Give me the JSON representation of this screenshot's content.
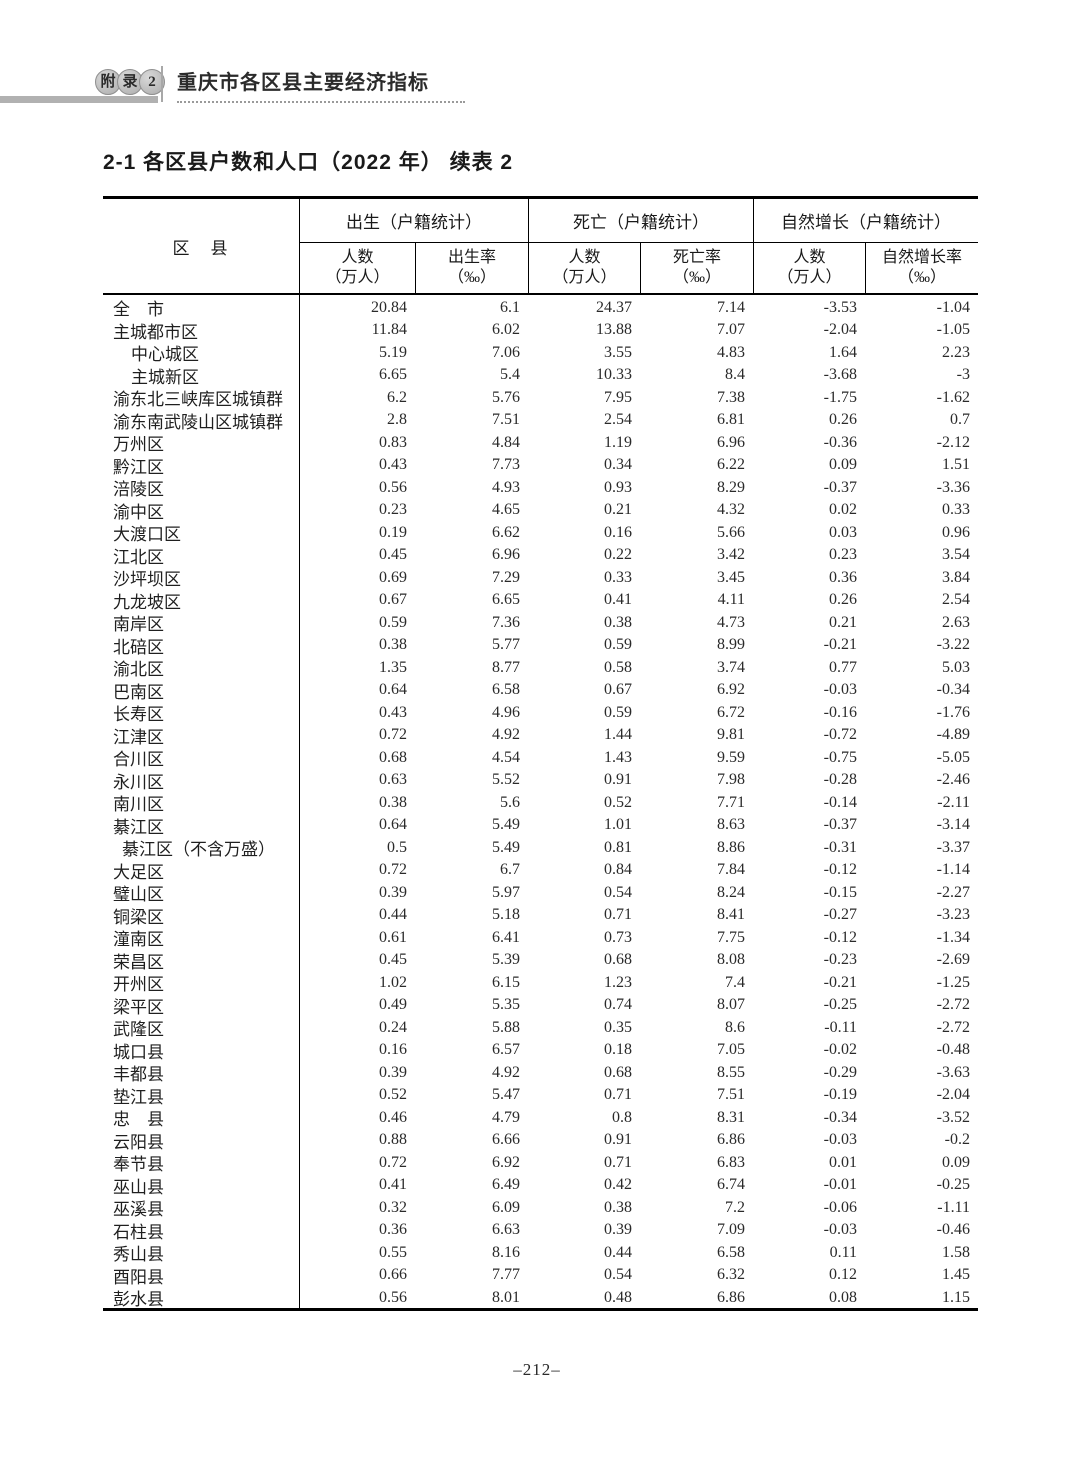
{
  "page_header": {
    "badge_chars": [
      "附",
      "录",
      "2"
    ],
    "doc_title": "重庆市各区县主要经济指标"
  },
  "table_title": "2-1  各区县户数和人口（2022 年） 续表 2",
  "colors": {
    "accent_bar": "#b1b1b1",
    "badge_fill": "#b9b9b9",
    "table_border": "#000000"
  },
  "table": {
    "corner_header": "区　县",
    "groups": [
      {
        "label": "出生（户籍统计）"
      },
      {
        "label": "死亡（户籍统计）"
      },
      {
        "label": "自然增长（户籍统计）"
      }
    ],
    "sub_headers": [
      {
        "line1": "人数",
        "line2": "（万人）"
      },
      {
        "line1": "出生率",
        "line2": "（‰）"
      },
      {
        "line1": "人数",
        "line2": "（万人）"
      },
      {
        "line1": "死亡率",
        "line2": "（‰）"
      },
      {
        "line1": "人数",
        "line2": "（万人）"
      },
      {
        "line1": "自然增长率",
        "line2": "（‰）"
      }
    ],
    "rows": [
      {
        "name": "全　市",
        "indent": 0,
        "values": [
          "20.84",
          "6.1",
          "24.37",
          "7.14",
          "-3.53",
          "-1.04"
        ]
      },
      {
        "name": "主城都市区",
        "indent": 0,
        "values": [
          "11.84",
          "6.02",
          "13.88",
          "7.07",
          "-2.04",
          "-1.05"
        ]
      },
      {
        "name": "中心城区",
        "indent": 18,
        "values": [
          "5.19",
          "7.06",
          "3.55",
          "4.83",
          "1.64",
          "2.23"
        ]
      },
      {
        "name": "主城新区",
        "indent": 18,
        "values": [
          "6.65",
          "5.4",
          "10.33",
          "8.4",
          "-3.68",
          "-3"
        ]
      },
      {
        "name": "渝东北三峡库区城镇群",
        "indent": 0,
        "values": [
          "6.2",
          "5.76",
          "7.95",
          "7.38",
          "-1.75",
          "-1.62"
        ]
      },
      {
        "name": "渝东南武陵山区城镇群",
        "indent": 0,
        "values": [
          "2.8",
          "7.51",
          "2.54",
          "6.81",
          "0.26",
          "0.7"
        ]
      },
      {
        "name": "万州区",
        "indent": 0,
        "values": [
          "0.83",
          "4.84",
          "1.19",
          "6.96",
          "-0.36",
          "-2.12"
        ]
      },
      {
        "name": "黔江区",
        "indent": 0,
        "values": [
          "0.43",
          "7.73",
          "0.34",
          "6.22",
          "0.09",
          "1.51"
        ]
      },
      {
        "name": "涪陵区",
        "indent": 0,
        "values": [
          "0.56",
          "4.93",
          "0.93",
          "8.29",
          "-0.37",
          "-3.36"
        ]
      },
      {
        "name": "渝中区",
        "indent": 0,
        "values": [
          "0.23",
          "4.65",
          "0.21",
          "4.32",
          "0.02",
          "0.33"
        ]
      },
      {
        "name": "大渡口区",
        "indent": 0,
        "values": [
          "0.19",
          "6.62",
          "0.16",
          "5.66",
          "0.03",
          "0.96"
        ]
      },
      {
        "name": "江北区",
        "indent": 0,
        "values": [
          "0.45",
          "6.96",
          "0.22",
          "3.42",
          "0.23",
          "3.54"
        ]
      },
      {
        "name": "沙坪坝区",
        "indent": 0,
        "values": [
          "0.69",
          "7.29",
          "0.33",
          "3.45",
          "0.36",
          "3.84"
        ]
      },
      {
        "name": "九龙坡区",
        "indent": 0,
        "values": [
          "0.67",
          "6.65",
          "0.41",
          "4.11",
          "0.26",
          "2.54"
        ]
      },
      {
        "name": "南岸区",
        "indent": 0,
        "values": [
          "0.59",
          "7.36",
          "0.38",
          "4.73",
          "0.21",
          "2.63"
        ]
      },
      {
        "name": "北碚区",
        "indent": 0,
        "values": [
          "0.38",
          "5.77",
          "0.59",
          "8.99",
          "-0.21",
          "-3.22"
        ]
      },
      {
        "name": "渝北区",
        "indent": 0,
        "values": [
          "1.35",
          "8.77",
          "0.58",
          "3.74",
          "0.77",
          "5.03"
        ]
      },
      {
        "name": "巴南区",
        "indent": 0,
        "values": [
          "0.64",
          "6.58",
          "0.67",
          "6.92",
          "-0.03",
          "-0.34"
        ]
      },
      {
        "name": "长寿区",
        "indent": 0,
        "values": [
          "0.43",
          "4.96",
          "0.59",
          "6.72",
          "-0.16",
          "-1.76"
        ]
      },
      {
        "name": "江津区",
        "indent": 0,
        "values": [
          "0.72",
          "4.92",
          "1.44",
          "9.81",
          "-0.72",
          "-4.89"
        ]
      },
      {
        "name": "合川区",
        "indent": 0,
        "values": [
          "0.68",
          "4.54",
          "1.43",
          "9.59",
          "-0.75",
          "-5.05"
        ]
      },
      {
        "name": "永川区",
        "indent": 0,
        "values": [
          "0.63",
          "5.52",
          "0.91",
          "7.98",
          "-0.28",
          "-2.46"
        ]
      },
      {
        "name": "南川区",
        "indent": 0,
        "values": [
          "0.38",
          "5.6",
          "0.52",
          "7.71",
          "-0.14",
          "-2.11"
        ]
      },
      {
        "name": "綦江区",
        "indent": 0,
        "values": [
          "0.64",
          "5.49",
          "1.01",
          "8.63",
          "-0.37",
          "-3.14"
        ]
      },
      {
        "name": "綦江区（不含万盛）",
        "indent": 9,
        "values": [
          "0.5",
          "5.49",
          "0.81",
          "8.86",
          "-0.31",
          "-3.37"
        ]
      },
      {
        "name": "大足区",
        "indent": 0,
        "values": [
          "0.72",
          "6.7",
          "0.84",
          "7.84",
          "-0.12",
          "-1.14"
        ]
      },
      {
        "name": "璧山区",
        "indent": 0,
        "values": [
          "0.39",
          "5.97",
          "0.54",
          "8.24",
          "-0.15",
          "-2.27"
        ]
      },
      {
        "name": "铜梁区",
        "indent": 0,
        "values": [
          "0.44",
          "5.18",
          "0.71",
          "8.41",
          "-0.27",
          "-3.23"
        ]
      },
      {
        "name": "潼南区",
        "indent": 0,
        "values": [
          "0.61",
          "6.41",
          "0.73",
          "7.75",
          "-0.12",
          "-1.34"
        ]
      },
      {
        "name": "荣昌区",
        "indent": 0,
        "values": [
          "0.45",
          "5.39",
          "0.68",
          "8.08",
          "-0.23",
          "-2.69"
        ]
      },
      {
        "name": "开州区",
        "indent": 0,
        "values": [
          "1.02",
          "6.15",
          "1.23",
          "7.4",
          "-0.21",
          "-1.25"
        ]
      },
      {
        "name": "梁平区",
        "indent": 0,
        "values": [
          "0.49",
          "5.35",
          "0.74",
          "8.07",
          "-0.25",
          "-2.72"
        ]
      },
      {
        "name": "武隆区",
        "indent": 0,
        "values": [
          "0.24",
          "5.88",
          "0.35",
          "8.6",
          "-0.11",
          "-2.72"
        ]
      },
      {
        "name": "城口县",
        "indent": 0,
        "values": [
          "0.16",
          "6.57",
          "0.18",
          "7.05",
          "-0.02",
          "-0.48"
        ]
      },
      {
        "name": "丰都县",
        "indent": 0,
        "values": [
          "0.39",
          "4.92",
          "0.68",
          "8.55",
          "-0.29",
          "-3.63"
        ]
      },
      {
        "name": "垫江县",
        "indent": 0,
        "values": [
          "0.52",
          "5.47",
          "0.71",
          "7.51",
          "-0.19",
          "-2.04"
        ]
      },
      {
        "name": "忠　县",
        "indent": 0,
        "values": [
          "0.46",
          "4.79",
          "0.8",
          "8.31",
          "-0.34",
          "-3.52"
        ]
      },
      {
        "name": "云阳县",
        "indent": 0,
        "values": [
          "0.88",
          "6.66",
          "0.91",
          "6.86",
          "-0.03",
          "-0.2"
        ]
      },
      {
        "name": "奉节县",
        "indent": 0,
        "values": [
          "0.72",
          "6.92",
          "0.71",
          "6.83",
          "0.01",
          "0.09"
        ]
      },
      {
        "name": "巫山县",
        "indent": 0,
        "values": [
          "0.41",
          "6.49",
          "0.42",
          "6.74",
          "-0.01",
          "-0.25"
        ]
      },
      {
        "name": "巫溪县",
        "indent": 0,
        "values": [
          "0.32",
          "6.09",
          "0.38",
          "7.2",
          "-0.06",
          "-1.11"
        ]
      },
      {
        "name": "石柱县",
        "indent": 0,
        "values": [
          "0.36",
          "6.63",
          "0.39",
          "7.09",
          "-0.03",
          "-0.46"
        ]
      },
      {
        "name": "秀山县",
        "indent": 0,
        "values": [
          "0.55",
          "8.16",
          "0.44",
          "6.58",
          "0.11",
          "1.58"
        ]
      },
      {
        "name": "酉阳县",
        "indent": 0,
        "values": [
          "0.66",
          "7.77",
          "0.54",
          "6.32",
          "0.12",
          "1.45"
        ]
      },
      {
        "name": "彭水县",
        "indent": 0,
        "values": [
          "0.56",
          "8.01",
          "0.48",
          "6.86",
          "0.08",
          "1.15"
        ]
      }
    ]
  },
  "footer": {
    "page_number": "–212–"
  }
}
